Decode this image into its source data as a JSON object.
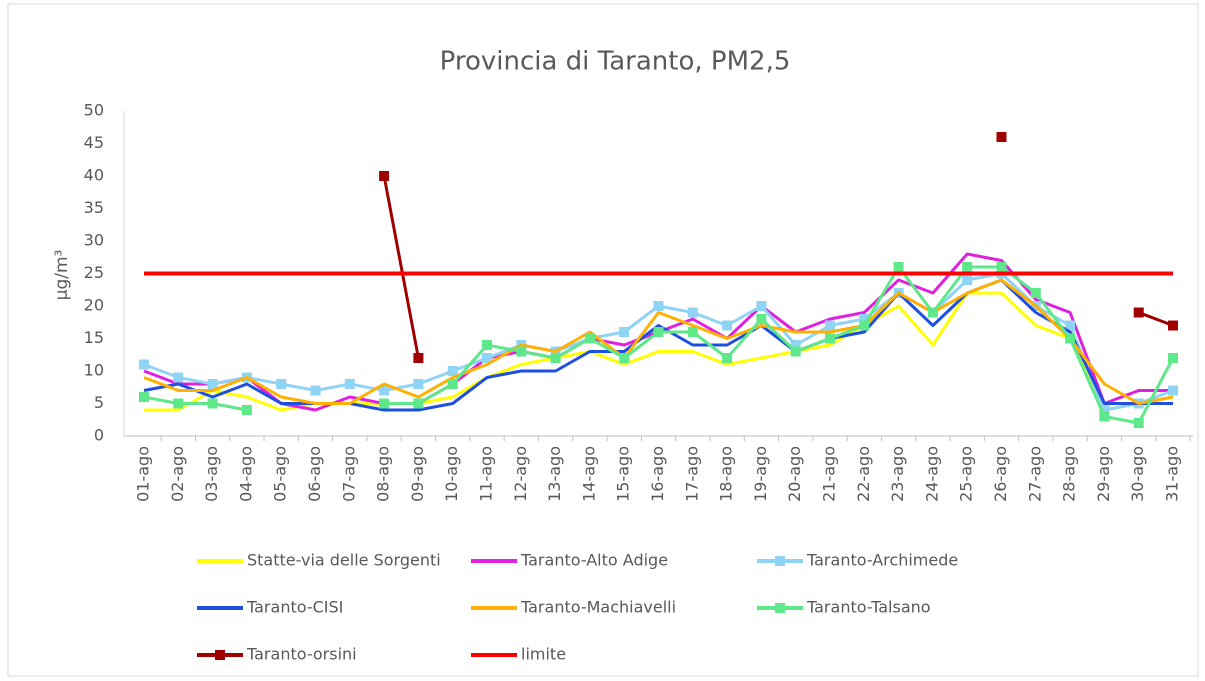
{
  "chart_data": {
    "type": "line",
    "title": "Provincia di Taranto, PM2,5",
    "y_label": "µg/m³",
    "categories": [
      "01-ago",
      "02-ago",
      "03-ago",
      "04-ago",
      "05-ago",
      "06-ago",
      "07-ago",
      "08-ago",
      "09-ago",
      "10-ago",
      "11-ago",
      "12-ago",
      "13-ago",
      "14-ago",
      "15-ago",
      "16-ago",
      "17-ago",
      "18-ago",
      "19-ago",
      "20-ago",
      "21-ago",
      "22-ago",
      "23-ago",
      "24-ago",
      "25-ago",
      "26-ago",
      "27-ago",
      "28-ago",
      "29-ago",
      "30-ago",
      "31-ago"
    ],
    "ylim": [
      0,
      50
    ],
    "yticks": [
      0,
      5,
      10,
      15,
      20,
      25,
      30,
      35,
      40,
      45,
      50
    ],
    "grid": false,
    "series": [
      {
        "name": "Statte-via delle Sorgenti",
        "color": "#ffff00",
        "marker": "none",
        "values": [
          4,
          4,
          7,
          6,
          4,
          5,
          5,
          5,
          5,
          6,
          9,
          11,
          12,
          13,
          11,
          13,
          13,
          11,
          12,
          13,
          14,
          17,
          20,
          14,
          22,
          22,
          17,
          15,
          4,
          5,
          6
        ]
      },
      {
        "name": "Taranto-Alto Adige",
        "color": "#e020e0",
        "marker": "none",
        "values": [
          10,
          8,
          8,
          9,
          5,
          4,
          6,
          5,
          5,
          8,
          12,
          13,
          12,
          15,
          14,
          16,
          18,
          15,
          20,
          16,
          18,
          19,
          24,
          22,
          28,
          27,
          21,
          19,
          5,
          7,
          7
        ]
      },
      {
        "name": "Taranto-Archimede",
        "color": "#8fd3f5",
        "marker": "square",
        "values": [
          11,
          9,
          8,
          9,
          8,
          7,
          8,
          7,
          8,
          10,
          12,
          14,
          13,
          15,
          16,
          20,
          19,
          17,
          20,
          14,
          17,
          18,
          22,
          19,
          24,
          25,
          20,
          17,
          4,
          5,
          7
        ]
      },
      {
        "name": "Taranto-CISI",
        "color": "#1f4fe0",
        "marker": "none",
        "values": [
          7,
          8,
          6,
          8,
          5,
          5,
          5,
          4,
          4,
          5,
          9,
          10,
          10,
          13,
          13,
          17,
          14,
          14,
          17,
          13,
          15,
          16,
          22,
          17,
          22,
          24,
          19,
          16,
          5,
          5,
          5
        ]
      },
      {
        "name": "Taranto-Machiavelli",
        "color": "#ffb000",
        "marker": "none",
        "values": [
          9,
          7,
          7,
          9,
          6,
          5,
          5,
          8,
          6,
          9,
          11,
          14,
          13,
          16,
          12,
          19,
          17,
          15,
          17,
          16,
          16,
          17,
          22,
          19,
          22,
          24,
          20,
          15,
          8,
          5,
          6
        ]
      },
      {
        "name": "Taranto-Talsano",
        "color": "#5ee88a",
        "marker": "square",
        "values": [
          6,
          5,
          5,
          4,
          null,
          null,
          null,
          5,
          5,
          8,
          14,
          13,
          12,
          15,
          12,
          16,
          16,
          12,
          18,
          13,
          15,
          17,
          26,
          19,
          26,
          26,
          22,
          15,
          3,
          2,
          12
        ]
      },
      {
        "name": "Taranto-orsini",
        "color": "#a00000",
        "marker": "square",
        "values": [
          null,
          null,
          null,
          null,
          null,
          null,
          null,
          40,
          12,
          null,
          null,
          null,
          null,
          null,
          null,
          null,
          null,
          null,
          null,
          null,
          null,
          null,
          null,
          null,
          null,
          46,
          null,
          null,
          null,
          19,
          17
        ]
      },
      {
        "name": "limite",
        "color": "#ff0000",
        "marker": "none",
        "values": [
          25,
          25,
          25,
          25,
          25,
          25,
          25,
          25,
          25,
          25,
          25,
          25,
          25,
          25,
          25,
          25,
          25,
          25,
          25,
          25,
          25,
          25,
          25,
          25,
          25,
          25,
          25,
          25,
          25,
          25,
          25
        ]
      }
    ]
  }
}
